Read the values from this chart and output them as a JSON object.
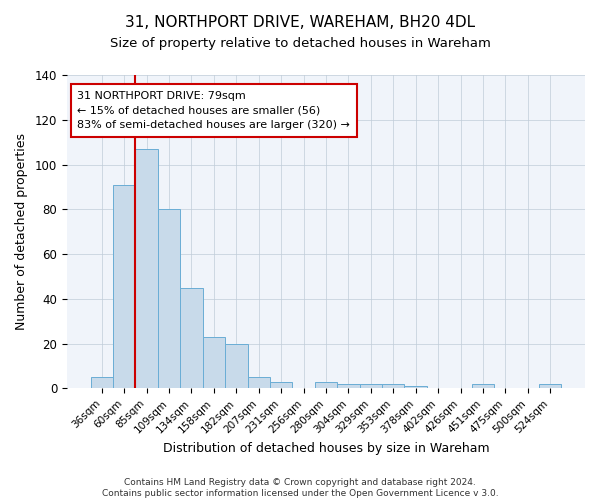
{
  "title": "31, NORTHPORT DRIVE, WAREHAM, BH20 4DL",
  "subtitle": "Size of property relative to detached houses in Wareham",
  "xlabel": "Distribution of detached houses by size in Wareham",
  "ylabel": "Number of detached properties",
  "bar_labels": [
    "36sqm",
    "60sqm",
    "85sqm",
    "109sqm",
    "134sqm",
    "158sqm",
    "182sqm",
    "207sqm",
    "231sqm",
    "256sqm",
    "280sqm",
    "304sqm",
    "329sqm",
    "353sqm",
    "378sqm",
    "402sqm",
    "426sqm",
    "451sqm",
    "475sqm",
    "500sqm",
    "524sqm"
  ],
  "bar_heights": [
    5,
    91,
    107,
    80,
    45,
    23,
    20,
    5,
    3,
    0,
    3,
    2,
    2,
    2,
    1,
    0,
    0,
    2,
    0,
    0,
    2
  ],
  "bar_color": "#c8daea",
  "bar_edge_color": "#6aadd5",
  "vline_color": "#cc0000",
  "annotation_title": "31 NORTHPORT DRIVE: 79sqm",
  "annotation_line1": "← 15% of detached houses are smaller (56)",
  "annotation_line2": "83% of semi-detached houses are larger (320) →",
  "annotation_box_color": "#ffffff",
  "annotation_box_edge": "#cc0000",
  "footer1": "Contains HM Land Registry data © Crown copyright and database right 2024.",
  "footer2": "Contains public sector information licensed under the Open Government Licence v 3.0.",
  "ylim": [
    0,
    140
  ],
  "figsize": [
    6.0,
    5.0
  ],
  "dpi": 100
}
